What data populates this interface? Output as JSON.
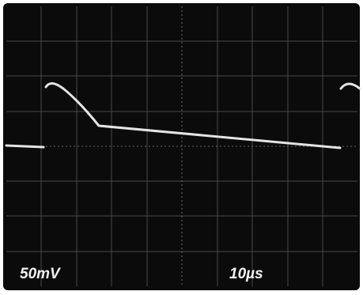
{
  "screen": {
    "volts_per_div": "50mV",
    "time_per_div": "10µs"
  }
}
